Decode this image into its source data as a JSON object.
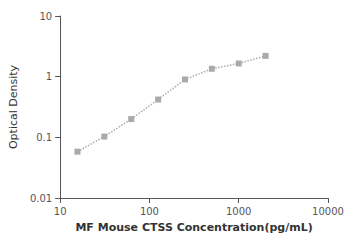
{
  "chart_data": {
    "type": "line",
    "x": [
      15.625,
      31.25,
      62.5,
      125,
      250,
      500,
      1000,
      2000
    ],
    "values": [
      0.058,
      0.103,
      0.2,
      0.42,
      0.9,
      1.35,
      1.65,
      2.2
    ],
    "color": "#aaaaaa",
    "marker": "square",
    "line_style": "dotted",
    "xlabel": "MF Mouse CTSS Concentration(pg/mL)",
    "ylabel": "Optical Density",
    "log": true,
    "xlim": [
      10,
      10000
    ],
    "ylim": [
      0.01,
      10
    ],
    "xticks": [
      10,
      100,
      1000,
      10000
    ],
    "yticks": [
      0.01,
      0.1,
      1,
      10
    ],
    "grid": false
  }
}
